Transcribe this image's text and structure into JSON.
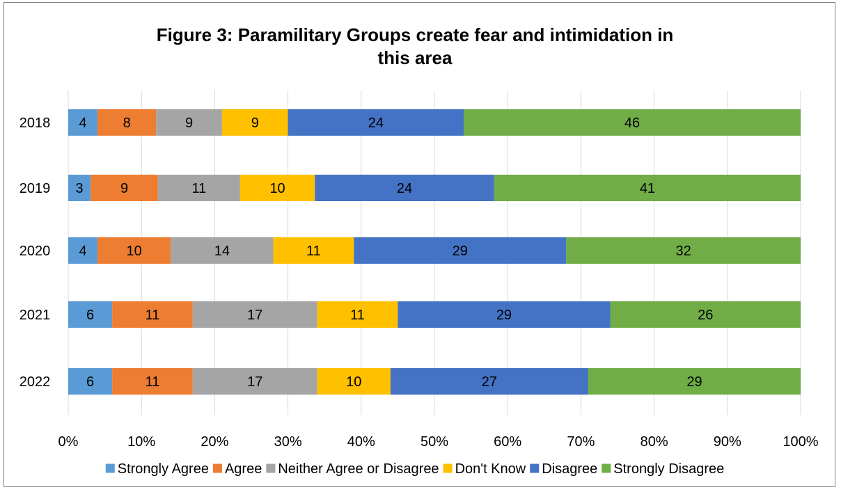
{
  "chart_data": {
    "type": "bar",
    "orientation": "horizontal",
    "stacked": "percent",
    "title": "Figure 3: Paramilitary Groups create fear and intimidation in this area",
    "title_lines": [
      "Figure 3: Paramilitary Groups create fear and intimidation in",
      "this area"
    ],
    "categories": [
      "2018",
      "2019",
      "2020",
      "2021",
      "2022"
    ],
    "series": [
      {
        "name": "Strongly Agree",
        "color": "#5b9bd5",
        "values": [
          4,
          3,
          4,
          6,
          6
        ]
      },
      {
        "name": "Agree",
        "color": "#ed7d31",
        "values": [
          8,
          9,
          10,
          11,
          11
        ]
      },
      {
        "name": "Neither Agree or Disagree",
        "color": "#a5a5a5",
        "values": [
          9,
          11,
          14,
          17,
          17
        ]
      },
      {
        "name": "Don't Know",
        "color": "#ffc000",
        "values": [
          9,
          10,
          11,
          11,
          10
        ]
      },
      {
        "name": "Disagree",
        "color": "#4472c4",
        "values": [
          24,
          24,
          29,
          29,
          27
        ]
      },
      {
        "name": "Strongly Disagree",
        "color": "#70ad47",
        "values": [
          46,
          41,
          32,
          26,
          29
        ]
      }
    ],
    "xticks": [
      "0%",
      "10%",
      "20%",
      "30%",
      "40%",
      "50%",
      "60%",
      "70%",
      "80%",
      "90%",
      "100%"
    ],
    "xlim": [
      0,
      100
    ],
    "xlabel": "",
    "ylabel": "",
    "grid": true,
    "legend_position": "bottom"
  }
}
